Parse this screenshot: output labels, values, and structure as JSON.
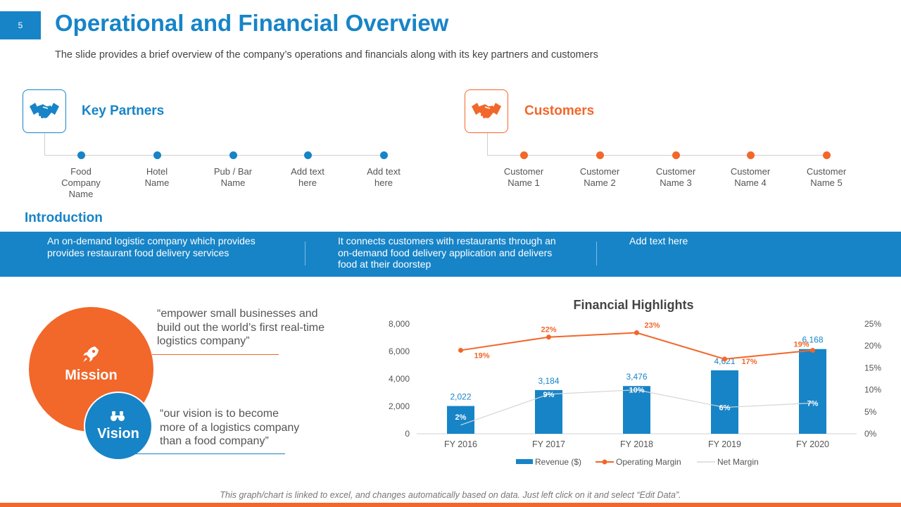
{
  "page_number": "5",
  "title": "Operational and Financial Overview",
  "subtitle": "The slide provides a brief overview of the company’s operations and financials along with its key partners and customers",
  "colors": {
    "blue": "#1784c7",
    "orange": "#f2672a"
  },
  "key_partners": {
    "label": "Key Partners",
    "icon": "handshake-icon",
    "items": [
      [
        "Food",
        "Company",
        "Name"
      ],
      [
        "Hotel",
        "Name"
      ],
      [
        "Pub / Bar",
        "Name"
      ],
      [
        "Add text",
        "here"
      ],
      [
        "Add text",
        "here"
      ]
    ]
  },
  "customers": {
    "label": "Customers",
    "icon": "handshake-icon",
    "items": [
      [
        "Customer",
        "Name 1"
      ],
      [
        "Customer",
        "Name 2"
      ],
      [
        "Customer",
        "Name 3"
      ],
      [
        "Customer",
        "Name 4"
      ],
      [
        "Customer",
        "Name 5"
      ]
    ]
  },
  "introduction": {
    "heading": "Introduction",
    "columns": [
      [
        "An on-demand logistic company which provides",
        "provides restaurant food delivery services"
      ],
      [
        "It connects customers with restaurants through an",
        "on-demand food delivery application and delivers",
        "food at their doorstep"
      ],
      [
        "Add text here"
      ]
    ]
  },
  "mission": {
    "label": "Mission",
    "icon": "rocket-icon",
    "quote": [
      "“empower small businesses and",
      "build out the world’s first real-time",
      "logistics company”"
    ]
  },
  "vision": {
    "label": "Vision",
    "icon": "binoculars-icon",
    "quote": [
      "“our vision is to become",
      "more of a logistics company",
      "than a food company”"
    ]
  },
  "chart_data": {
    "type": "bar",
    "title": "Financial Highlights",
    "categories": [
      "FY 2016",
      "FY 2017",
      "FY 2018",
      "FY 2019",
      "FY 2020"
    ],
    "ylim": [
      0,
      8000
    ],
    "yticks": [
      0,
      2000,
      4000,
      6000,
      8000
    ],
    "ytick_labels": [
      "0",
      "2,000",
      "4,000",
      "6,000",
      "8,000"
    ],
    "y2lim": [
      0,
      25
    ],
    "y2ticks": [
      0,
      5,
      10,
      15,
      20,
      25
    ],
    "y2tick_labels": [
      "0%",
      "5%",
      "10%",
      "15%",
      "20%",
      "25%"
    ],
    "series": [
      {
        "name": "Revenue ($)",
        "type": "bar",
        "axis": "left",
        "values": [
          2022,
          3184,
          3476,
          4621,
          6168
        ],
        "labels": [
          "2,022",
          "3,184",
          "3,476",
          "4,621",
          "6,168"
        ],
        "color": "#1784c7"
      },
      {
        "name": "Operating Margin",
        "type": "line",
        "axis": "right",
        "values": [
          19,
          22,
          23,
          17,
          19
        ],
        "labels": [
          "19%",
          "22%",
          "23%",
          "17%",
          "19%"
        ],
        "color": "#f2672a"
      },
      {
        "name": "Net Margin",
        "type": "line",
        "axis": "right",
        "values": [
          2,
          9,
          10,
          6,
          7
        ],
        "labels": [
          "2%",
          "9%",
          "10%",
          "6%",
          "7%"
        ],
        "color": "#d5d5d5"
      }
    ],
    "legend": "bottom"
  },
  "footer_note": "This graph/chart is linked to excel, and changes automatically based on data. Just left click on it and select “Edit Data”."
}
